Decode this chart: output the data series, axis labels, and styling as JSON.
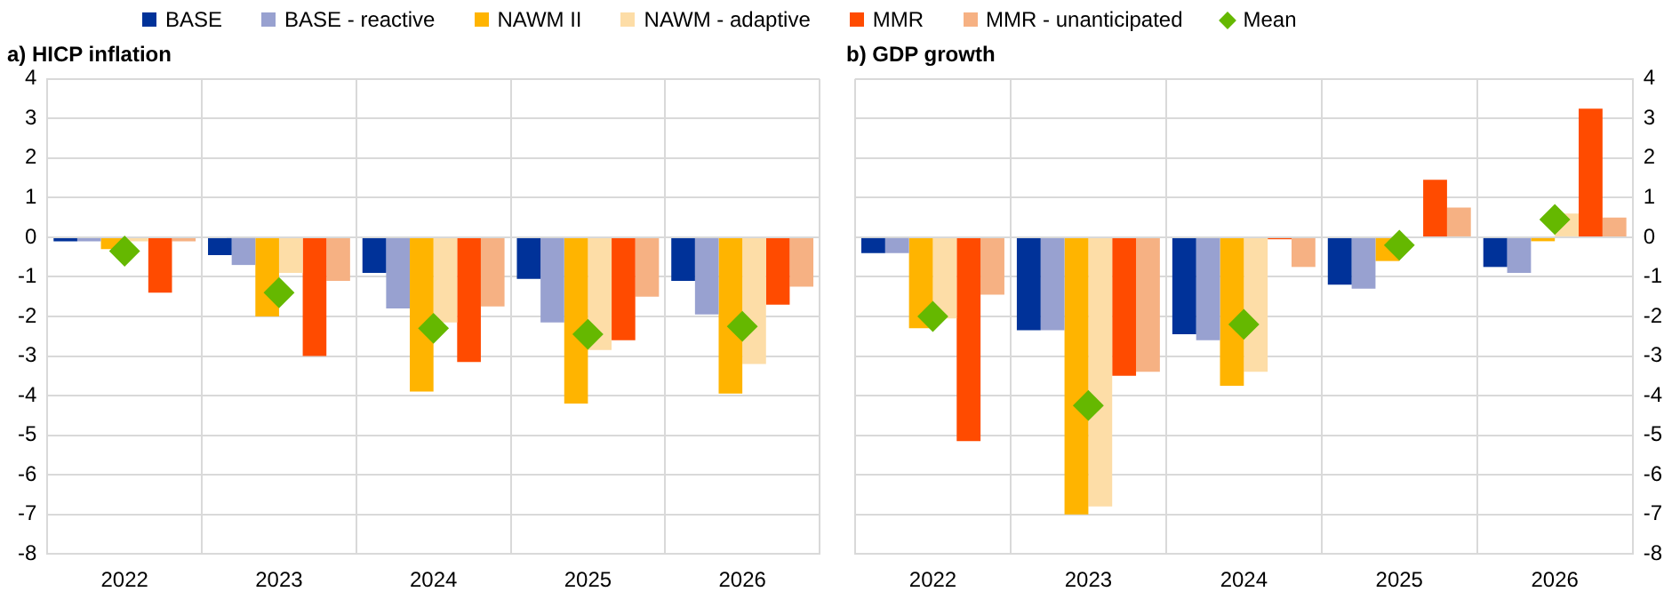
{
  "chart_data": [
    {
      "type": "bar",
      "title": "a) HICP inflation",
      "categories": [
        "2022",
        "2023",
        "2024",
        "2025",
        "2026"
      ],
      "ylim": [
        -8,
        4
      ],
      "yticks": [
        -8,
        -7,
        -6,
        -5,
        -4,
        -3,
        -2,
        -1,
        0,
        1,
        2,
        3,
        4
      ],
      "grid": true,
      "legend": "top",
      "series": [
        {
          "name": "BASE",
          "color": "#003299",
          "values": [
            -0.1,
            -0.45,
            -0.9,
            -1.05,
            -1.1
          ]
        },
        {
          "name": "BASE - reactive",
          "color": "#98a1d0",
          "values": [
            -0.1,
            -0.7,
            -1.8,
            -2.15,
            -1.95
          ]
        },
        {
          "name": "NAWM II",
          "color": "#ffb400",
          "values": [
            -0.3,
            -2.0,
            -3.9,
            -4.2,
            -3.95
          ]
        },
        {
          "name": "NAWM - adaptive",
          "color": "#fddda7",
          "values": [
            -0.1,
            -0.9,
            -2.15,
            -2.85,
            -3.2
          ]
        },
        {
          "name": "MMR",
          "color": "#ff4b00",
          "values": [
            -1.4,
            -3.0,
            -3.15,
            -2.6,
            -1.7
          ]
        },
        {
          "name": "MMR - unanticipated",
          "color": "#f6b183",
          "values": [
            -0.1,
            -1.1,
            -1.75,
            -1.5,
            -1.25
          ]
        },
        {
          "name": "Mean",
          "type": "scatter",
          "marker": "diamond",
          "color": "#65b800",
          "values": [
            -0.35,
            -1.4,
            -2.3,
            -2.45,
            -2.25
          ]
        }
      ]
    },
    {
      "type": "bar",
      "title": "b) GDP growth",
      "categories": [
        "2022",
        "2023",
        "2024",
        "2025",
        "2026"
      ],
      "ylim": [
        -8,
        4
      ],
      "yticks": [
        -8,
        -7,
        -6,
        -5,
        -4,
        -3,
        -2,
        -1,
        0,
        1,
        2,
        3,
        4
      ],
      "grid": true,
      "series": [
        {
          "color": "#003299",
          "values": [
            -0.4,
            -2.35,
            -2.45,
            -1.2,
            -0.75
          ]
        },
        {
          "color": "#98a1d0",
          "values": [
            -0.4,
            -2.35,
            -2.6,
            -1.3,
            -0.9
          ]
        },
        {
          "color": "#ffb400",
          "values": [
            -2.3,
            -7.0,
            -3.75,
            -0.6,
            -0.1
          ]
        },
        {
          "color": "#fddda7",
          "values": [
            -2.05,
            -6.8,
            -3.4,
            null,
            0.6
          ]
        },
        {
          "color": "#ff4b00",
          "values": [
            -5.15,
            -3.5,
            -0.05,
            1.45,
            3.25
          ]
        },
        {
          "color": "#f6b183",
          "values": [
            -1.45,
            -3.4,
            -0.75,
            0.75,
            0.5
          ]
        },
        {
          "type": "scatter",
          "marker": "diamond",
          "color": "#65b800",
          "values": [
            -2.0,
            -4.25,
            -2.2,
            -0.2,
            0.45
          ]
        }
      ]
    }
  ]
}
